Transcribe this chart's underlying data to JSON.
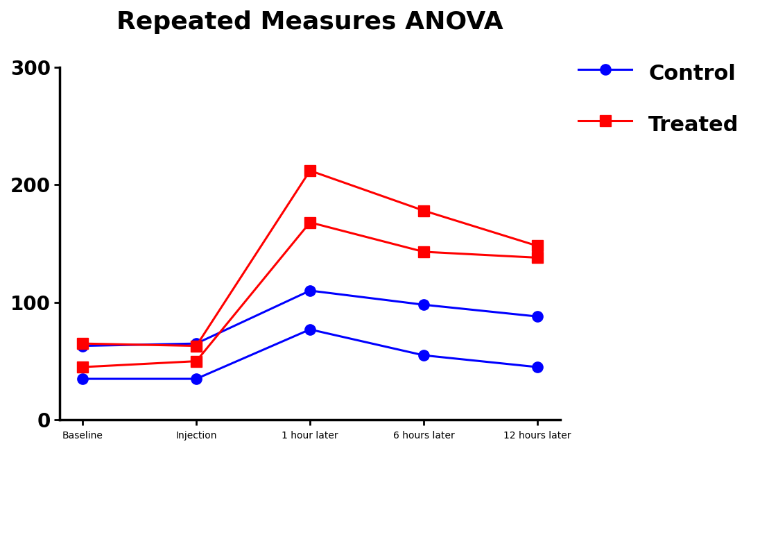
{
  "title": "Repeated Measures ANOVA",
  "title_fontsize": 26,
  "title_fontweight": "bold",
  "x_labels": [
    "Baseline",
    "Injection",
    "1 hour later",
    "6 hours later",
    "12 hours later"
  ],
  "ylim": [
    -5,
    320
  ],
  "yticks": [
    0,
    100,
    200,
    300
  ],
  "control_series": [
    [
      35,
      35,
      77,
      55,
      45
    ],
    [
      63,
      65,
      110,
      98,
      88
    ]
  ],
  "treated_series": [
    [
      45,
      50,
      168,
      143,
      138
    ],
    [
      65,
      63,
      212,
      178,
      148
    ]
  ],
  "control_color": "#0000FF",
  "treated_color": "#FF0000",
  "control_label": "Control",
  "treated_label": "Treated",
  "legend_fontsize": 22,
  "tick_fontsize": 20,
  "linewidth": 2.2,
  "marker_size": 11,
  "background_color": "#FFFFFF"
}
